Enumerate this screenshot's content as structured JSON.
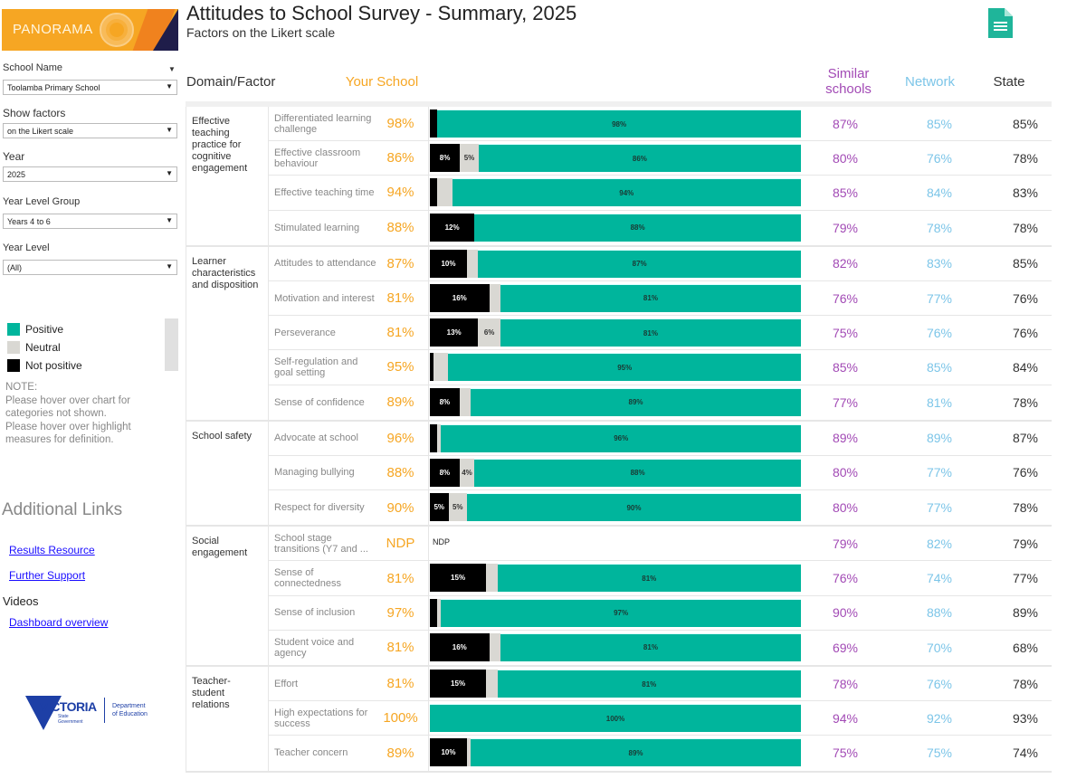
{
  "header": {
    "title": "Attitudes to School Survey - Summary, 2025",
    "subtitle": "Factors on the Likert scale",
    "export_icon": "document-icon"
  },
  "logo": {
    "text": "PANORAMA"
  },
  "filters": {
    "school_name": {
      "label": "School Name",
      "value": "Toolamba Primary School"
    },
    "show_factors": {
      "label": "Show factors",
      "value": "on the Likert scale"
    },
    "year": {
      "label": "Year",
      "value": "2025"
    },
    "year_level_group": {
      "label": "Year Level Group",
      "value": "Years 4 to 6"
    },
    "year_level": {
      "label": "Year Level",
      "value": "(All)"
    }
  },
  "legend": [
    {
      "label": "Positive",
      "color": "#00b59c"
    },
    {
      "label": "Neutral",
      "color": "#d9d8d3"
    },
    {
      "label": "Not positive",
      "color": "#000000"
    }
  ],
  "note": {
    "title": "NOTE:",
    "lines": [
      "Please hover over chart for",
      "categories not shown.",
      "Please hover over highlight",
      "measures for definition."
    ]
  },
  "additional_links": {
    "title": "Additional Links",
    "links": [
      "Results Resource",
      "Further Support"
    ],
    "videos_title": "Videos",
    "video_links": [
      "Dashboard overview"
    ]
  },
  "footer_logo": {
    "main": "VICTORIA",
    "sub1": "State",
    "sub2": "Government",
    "dept1": "Department",
    "dept2": "of Education"
  },
  "columns": {
    "domain_factor": "Domain/Factor",
    "your_school": "Your School",
    "similar_schools": "Similar schools",
    "network": "Network",
    "state": "State"
  },
  "colors": {
    "your_school": "#f6a623",
    "similar": "#a24ab5",
    "network": "#7cc5e8",
    "state": "#333333",
    "positive": "#00b59c",
    "neutral": "#d9d8d3",
    "not_positive": "#000000"
  },
  "chart_data": {
    "type": "bar",
    "orientation": "horizontal-stacked-100",
    "title": "Attitudes to School Survey - Summary, 2025",
    "subtitle": "Factors on the Likert scale",
    "legend": [
      "Positive",
      "Neutral",
      "Not positive"
    ],
    "xlim": [
      0,
      100
    ],
    "domains": [
      {
        "name": "Effective teaching practice for cognitive engagement",
        "factors": [
          {
            "name": "Differentiated learning challenge",
            "your_school": "98%",
            "not_positive": 2,
            "neutral": 0,
            "positive": 98,
            "labels": [
              "",
              "",
              "98%"
            ],
            "similar": "87%",
            "network": "85%",
            "state": "85%"
          },
          {
            "name": "Effective classroom behaviour",
            "your_school": "86%",
            "not_positive": 8,
            "neutral": 5,
            "positive": 86,
            "labels": [
              "8%",
              "5%",
              "86%"
            ],
            "similar": "80%",
            "network": "76%",
            "state": "78%"
          },
          {
            "name": "Effective teaching time",
            "your_school": "94%",
            "not_positive": 2,
            "neutral": 4,
            "positive": 94,
            "labels": [
              "",
              "",
              "94%"
            ],
            "similar": "85%",
            "network": "84%",
            "state": "83%"
          },
          {
            "name": "Stimulated learning",
            "your_school": "88%",
            "not_positive": 12,
            "neutral": 0,
            "positive": 88,
            "labels": [
              "12%",
              "",
              "88%"
            ],
            "similar": "79%",
            "network": "78%",
            "state": "78%"
          }
        ]
      },
      {
        "name": "Learner characteristics and disposition",
        "factors": [
          {
            "name": "Attitudes to attendance",
            "your_school": "87%",
            "not_positive": 10,
            "neutral": 3,
            "positive": 87,
            "labels": [
              "10%",
              "",
              "87%"
            ],
            "similar": "82%",
            "network": "83%",
            "state": "85%"
          },
          {
            "name": "Motivation and interest",
            "your_school": "81%",
            "not_positive": 16,
            "neutral": 3,
            "positive": 81,
            "labels": [
              "16%",
              "",
              "81%"
            ],
            "similar": "76%",
            "network": "77%",
            "state": "76%"
          },
          {
            "name": "Perseverance",
            "your_school": "81%",
            "not_positive": 13,
            "neutral": 6,
            "positive": 81,
            "labels": [
              "13%",
              "6%",
              "81%"
            ],
            "similar": "75%",
            "network": "76%",
            "state": "76%"
          },
          {
            "name": "Self-regulation and goal setting",
            "your_school": "95%",
            "not_positive": 1,
            "neutral": 4,
            "positive": 95,
            "labels": [
              "",
              "",
              "95%"
            ],
            "similar": "85%",
            "network": "85%",
            "state": "84%"
          },
          {
            "name": "Sense of confidence",
            "your_school": "89%",
            "not_positive": 8,
            "neutral": 3,
            "positive": 89,
            "labels": [
              "8%",
              "",
              "89%"
            ],
            "similar": "77%",
            "network": "81%",
            "state": "78%"
          }
        ]
      },
      {
        "name": "School safety",
        "factors": [
          {
            "name": "Advocate at school",
            "your_school": "96%",
            "not_positive": 2,
            "neutral": 1,
            "positive": 96,
            "labels": [
              "",
              "",
              "96%"
            ],
            "similar": "89%",
            "network": "89%",
            "state": "87%"
          },
          {
            "name": "Managing bullying",
            "your_school": "88%",
            "not_positive": 8,
            "neutral": 4,
            "positive": 88,
            "labels": [
              "8%",
              "4%",
              "88%"
            ],
            "similar": "80%",
            "network": "77%",
            "state": "76%"
          },
          {
            "name": "Respect for diversity",
            "your_school": "90%",
            "not_positive": 5,
            "neutral": 5,
            "positive": 90,
            "labels": [
              "5%",
              "5%",
              "90%"
            ],
            "similar": "80%",
            "network": "77%",
            "state": "78%"
          }
        ]
      },
      {
        "name": "Social engagement",
        "factors": [
          {
            "name": "School stage transitions (Y7 and ...",
            "your_school": "NDP",
            "ndp": true,
            "not_positive": 0,
            "neutral": 0,
            "positive": 0,
            "labels": [
              "",
              "",
              ""
            ],
            "similar": "79%",
            "network": "82%",
            "state": "79%"
          },
          {
            "name": "Sense of connectedness",
            "your_school": "81%",
            "not_positive": 15,
            "neutral": 3,
            "positive": 81,
            "labels": [
              "15%",
              "",
              "81%"
            ],
            "similar": "76%",
            "network": "74%",
            "state": "77%"
          },
          {
            "name": "Sense of inclusion",
            "your_school": "97%",
            "not_positive": 2,
            "neutral": 1,
            "positive": 97,
            "labels": [
              "",
              "",
              "97%"
            ],
            "similar": "90%",
            "network": "88%",
            "state": "89%"
          },
          {
            "name": "Student voice and agency",
            "your_school": "81%",
            "not_positive": 16,
            "neutral": 3,
            "positive": 81,
            "labels": [
              "16%",
              "",
              "81%"
            ],
            "similar": "69%",
            "network": "70%",
            "state": "68%"
          }
        ]
      },
      {
        "name": "Teacher-student relations",
        "factors": [
          {
            "name": "Effort",
            "your_school": "81%",
            "not_positive": 15,
            "neutral": 3,
            "positive": 81,
            "labels": [
              "15%",
              "",
              "81%"
            ],
            "similar": "78%",
            "network": "76%",
            "state": "78%"
          },
          {
            "name": "High expectations for success",
            "your_school": "100%",
            "not_positive": 0,
            "neutral": 0,
            "positive": 100,
            "labels": [
              "",
              "",
              "100%"
            ],
            "similar": "94%",
            "network": "92%",
            "state": "93%"
          },
          {
            "name": "Teacher concern",
            "your_school": "89%",
            "not_positive": 10,
            "neutral": 1,
            "positive": 89,
            "labels": [
              "10%",
              "",
              "89%"
            ],
            "similar": "75%",
            "network": "75%",
            "state": "74%"
          }
        ]
      }
    ],
    "ndp_label": "NDP"
  }
}
